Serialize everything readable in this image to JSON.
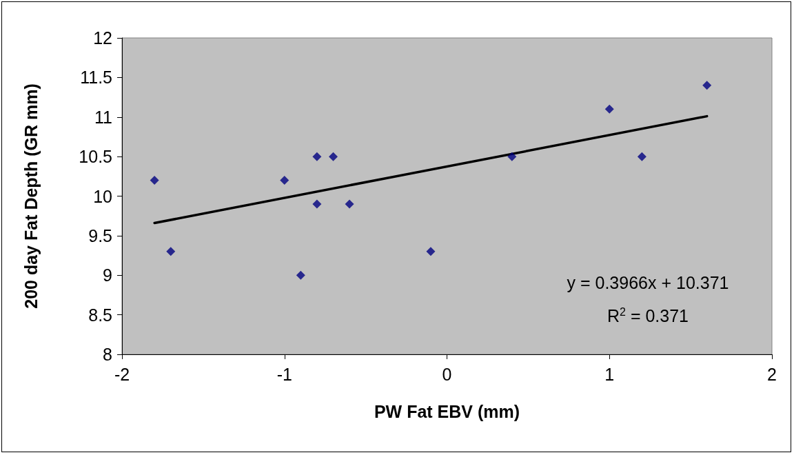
{
  "chart_data": {
    "type": "scatter",
    "xlabel": "PW Fat EBV (mm)",
    "ylabel": "200 day Fat Depth (GR mm)",
    "series": [
      {
        "type": "scatter",
        "color": "#000080",
        "marker": "diamond",
        "x": [
          -1.8,
          -1.7,
          -1.0,
          -0.9,
          -0.8,
          -0.8,
          -0.7,
          -0.6,
          -0.1,
          0.4,
          1.0,
          1.2,
          1.6
        ],
        "values": [
          10.2,
          9.3,
          10.2,
          9.0,
          10.5,
          9.9,
          10.5,
          9.9,
          9.3,
          10.5,
          11.1,
          10.5,
          11.4
        ]
      },
      {
        "type": "line",
        "color": "#000000",
        "marker": "none",
        "line_style": "solid",
        "x": [
          -1.8,
          1.6
        ],
        "values": [
          9.66,
          11.01
        ]
      }
    ],
    "xlim": [
      -2,
      2
    ],
    "xticks": [
      -2,
      -1,
      0,
      1,
      2
    ],
    "ylim": [
      8,
      12
    ],
    "yticks": [
      8,
      8.5,
      9,
      9.5,
      10,
      10.5,
      11,
      11.5,
      12
    ],
    "grid": false,
    "annotations": [
      "y = 0.3966x + 10.371",
      "R$^{2}$ = 0.371"
    ]
  }
}
